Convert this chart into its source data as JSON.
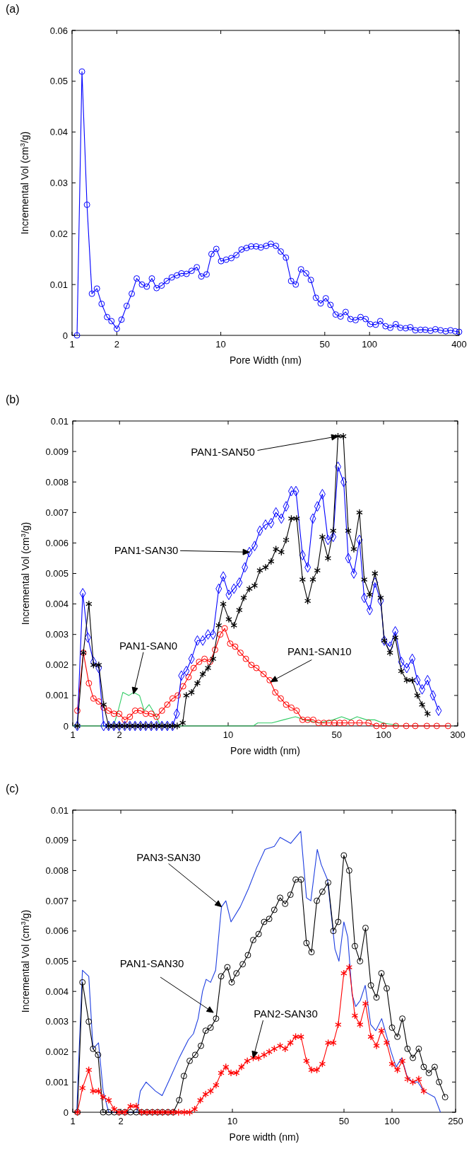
{
  "chart_data": [
    {
      "type": "line",
      "title": "(a)",
      "xlabel": "Pore Width (nm)",
      "ylabel": "Incremental Vol  (cm$^{3}$/g)",
      "log": "x",
      "xlim": [
        1,
        400
      ],
      "xticks": [
        1,
        2,
        10,
        50,
        100,
        400
      ],
      "ylim": [
        0,
        0.06
      ],
      "yticks": [
        0,
        0.01,
        0.02,
        0.03,
        0.04,
        0.05,
        0.06
      ],
      "marker": "circle",
      "series": [
        {
          "color": "#0000ff",
          "x": [
            1.08,
            1.166,
            1.26,
            1.36,
            1.47,
            1.58,
            1.72,
            1.84,
            2.0,
            2.15,
            2.33,
            2.52,
            2.72,
            2.95,
            3.18,
            3.44,
            3.7,
            4.0,
            4.33,
            4.68,
            5.07,
            5.44,
            5.89,
            6.37,
            6.9,
            7.4,
            8.03,
            8.66,
            9.33,
            10.04,
            10.87,
            11.77,
            12.73,
            13.78,
            14.9,
            16.0,
            17.3,
            18.6,
            20.2,
            21.7,
            23.5,
            25.3,
            27.4,
            29.7,
            31.9,
            34.6,
            37.5,
            40.3,
            43.6,
            46.9,
            50.8,
            54.6,
            59.2,
            63.9,
            69.1,
            74.4,
            80.6,
            87.0,
            94.2,
            101,
            110,
            118,
            128,
            138,
            150,
            161,
            175,
            188,
            203,
            220,
            237,
            257,
            277,
            300,
            325,
            350,
            377,
            400
          ],
          "values": [
            0,
            0.0519,
            0.0257,
            0.0082,
            0.0092,
            0.0062,
            0.0036,
            0.0028,
            0.0013,
            0.0031,
            0.0058,
            0.0082,
            0.0112,
            0.01,
            0.0096,
            0.0112,
            0.0093,
            0.0098,
            0.0107,
            0.0114,
            0.0118,
            0.0122,
            0.0121,
            0.0127,
            0.0134,
            0.0116,
            0.012,
            0.016,
            0.017,
            0.0146,
            0.0149,
            0.0152,
            0.0158,
            0.0169,
            0.0172,
            0.0175,
            0.0175,
            0.0173,
            0.0176,
            0.018,
            0.0176,
            0.0165,
            0.0153,
            0.0107,
            0.01,
            0.013,
            0.0122,
            0.0109,
            0.0074,
            0.0063,
            0.0073,
            0.006,
            0.0041,
            0.0037,
            0.0046,
            0.0032,
            0.003,
            0.0036,
            0.0032,
            0.0022,
            0.0021,
            0.0028,
            0.0018,
            0.0015,
            0.0022,
            0.0015,
            0.0014,
            0.0016,
            0.001,
            0.0011,
            0.0011,
            0.0009,
            0.0012,
            0.001,
            0.0008,
            0.001,
            0.0008,
            0.0007
          ]
        }
      ]
    },
    {
      "type": "line",
      "title": "(b)",
      "xlabel": "Pore width (nm)",
      "ylabel": "Incremental Vol  (cm$^{3}$/g)",
      "log": "x",
      "xlim": [
        1,
        300
      ],
      "xticks": [
        1,
        2,
        10,
        50,
        100,
        300
      ],
      "ylim": [
        0,
        0.01
      ],
      "yticks": [
        0,
        0.001,
        0.002,
        0.003,
        0.004,
        0.005,
        0.006,
        0.007,
        0.008,
        0.009,
        0.01
      ],
      "annotations": [
        {
          "text": "PAN1-SAN50",
          "x": 50.9,
          "y": 0.0095
        },
        {
          "text": "PAN1-SAN30",
          "x": 13.7,
          "y": 0.0057
        },
        {
          "text": "PAN1-SAN0",
          "x": 2.46,
          "y": 0.00105
        },
        {
          "text": "PAN1-SAN10",
          "x": 18.8,
          "y": 0.00145
        }
      ],
      "series": [
        {
          "color": "#33cc66",
          "marker": "none",
          "x": [
            1,
            1.83,
            1.96,
            2.1,
            2.3,
            2.46,
            2.69,
            2.88,
            3.1,
            3.37,
            3.68,
            14.5,
            15.5,
            19.1,
            22.7,
            27.1,
            31.1,
            38.5,
            47.4,
            53.7,
            60.9,
            67.6,
            77.9,
            87.7,
            99,
            130
          ],
          "values": [
            0,
            0,
            0.0005,
            0.0011,
            0.001,
            0.0011,
            0.001,
            0.0005,
            0.0007,
            0.0004,
            0,
            0,
            0.0001,
            0.0001,
            0.0002,
            0.0003,
            0.0002,
            0.0001,
            0.0002,
            0.0003,
            0.0002,
            0.0003,
            0.0002,
            0.0002,
            0.0001,
            0
          ]
        },
        {
          "color": "#ff0000",
          "marker": "circle",
          "x": [
            1.07,
            1.17,
            1.27,
            1.36,
            1.47,
            1.58,
            1.7,
            1.84,
            1.99,
            2.16,
            2.33,
            2.52,
            2.73,
            2.95,
            3.2,
            3.46,
            3.75,
            4.06,
            4.39,
            4.74,
            5.13,
            5.56,
            6.0,
            6.5,
            7.05,
            7.63,
            8.24,
            8.9,
            9.5,
            10.3,
            11.1,
            12.0,
            13.0,
            14.1,
            15.2,
            16.9,
            18.5,
            20.1,
            21.8,
            23.6,
            25.5,
            27.6,
            30.1,
            32.5,
            35.3,
            38.1,
            41.3,
            44.5,
            48.3,
            52.3,
            56,
            62,
            70,
            80,
            90,
            100,
            120,
            140,
            160,
            190,
            220,
            260
          ],
          "values": [
            0.0005,
            0.0024,
            0.0014,
            0.0009,
            0.0008,
            0.0006,
            0.0005,
            0.0004,
            0.0004,
            0.0002,
            0.0003,
            0.0005,
            0.0005,
            0.0004,
            0.0004,
            0.0003,
            0.0005,
            0.0007,
            0.0009,
            0.001,
            0.0013,
            0.0016,
            0.0019,
            0.0021,
            0.0022,
            0.0021,
            0.0025,
            0.003,
            0.0032,
            0.0027,
            0.0026,
            0.0024,
            0.0022,
            0.002,
            0.0019,
            0.0017,
            0.0015,
            0.0011,
            0.0009,
            0.0007,
            0.0006,
            0.0005,
            0.0002,
            0.0002,
            0.0002,
            0.0001,
            0.0001,
            0.0001,
            0.0001,
            0.0001,
            0.0001,
            0.0001,
            0.0001,
            0.0001,
            0,
            0,
            0,
            0,
            0,
            0,
            0,
            0
          ]
        },
        {
          "color": "#0000ff",
          "marker": "diamond",
          "x": [
            1.07,
            1.16,
            1.25,
            1.36,
            1.47,
            1.58,
            1.7,
            1.84,
            1.99,
            2.16,
            2.33,
            2.52,
            2.73,
            2.95,
            3.2,
            3.46,
            3.75,
            4.06,
            4.39,
            4.67,
            5.0,
            5.38,
            5.81,
            6.34,
            6.87,
            7.42,
            8.0,
            8.7,
            9.3,
            10.1,
            10.9,
            11.8,
            12.8,
            13.7,
            14.8,
            16.0,
            17.4,
            18.9,
            20.3,
            22.0,
            23.6,
            25.5,
            27.3,
            30.1,
            32.5,
            35.1,
            37.5,
            40.4,
            43.9,
            47.4,
            50.9,
            55.4,
            59.3,
            64.4,
            70.0,
            75.1,
            81.5,
            88.0,
            95.8,
            101,
            110,
            119,
            130,
            141,
            153,
            165,
            177,
            192,
            208,
            226
          ],
          "values": [
            0,
            0.00435,
            0.0029,
            0.0021,
            0.0019,
            0,
            0,
            0,
            0,
            0,
            0,
            0,
            0,
            0,
            0,
            0,
            0,
            0,
            0,
            0.0004,
            0.00165,
            0.0018,
            0.0022,
            0.0028,
            0.0028,
            0.003,
            0.003,
            0.0045,
            0.0049,
            0.0043,
            0.0045,
            0.0047,
            0.0052,
            0.0057,
            0.0059,
            0.0064,
            0.0066,
            0.00665,
            0.007,
            0.0068,
            0.0072,
            0.0077,
            0.0077,
            0.0056,
            0.0052,
            0.0068,
            0.0072,
            0.0076,
            0.0061,
            0.0062,
            0.0085,
            0.008,
            0.0055,
            0.005,
            0.0061,
            0.0042,
            0.0038,
            0.0047,
            0.0041,
            0.0028,
            0.0026,
            0.0031,
            0.0021,
            0.0019,
            0.0022,
            0.0015,
            0.0012,
            0.0015,
            0.001,
            0.0005
          ]
        },
        {
          "color": "#000000",
          "marker": "cross",
          "x": [
            1.07,
            1.17,
            1.27,
            1.36,
            1.47,
            1.58,
            1.7,
            1.84,
            1.99,
            2.16,
            2.33,
            2.52,
            2.73,
            2.95,
            3.2,
            3.46,
            3.75,
            4.06,
            4.39,
            4.7,
            5.1,
            5.38,
            5.81,
            6.34,
            6.87,
            7.42,
            8.0,
            8.7,
            9.3,
            10.1,
            10.9,
            11.8,
            12.6,
            13.7,
            14.8,
            16.0,
            17.4,
            18.9,
            20.3,
            22.0,
            23.6,
            25.5,
            27.6,
            30.1,
            32.5,
            35.1,
            37.5,
            40.4,
            43.9,
            47.4,
            50.9,
            55.1,
            59.3,
            64.4,
            70.0,
            75.1,
            81.5,
            88.0,
            95.8,
            101,
            110,
            119,
            130,
            141,
            153,
            165,
            177,
            192
          ],
          "values": [
            0,
            0.0024,
            0.004,
            0.002,
            0.002,
            0.0007,
            0,
            0,
            0,
            0,
            0,
            0,
            0,
            0,
            0,
            0,
            0,
            0,
            0,
            0,
            0.0001,
            0.001,
            0.0011,
            0.0014,
            0.0017,
            0.0019,
            0.0022,
            0.0033,
            0.004,
            0.0035,
            0.0033,
            0.0038,
            0.0042,
            0.0045,
            0.0046,
            0.0051,
            0.0052,
            0.0054,
            0.0058,
            0.0057,
            0.0061,
            0.0068,
            0.0068,
            0.0048,
            0.0041,
            0.0048,
            0.0051,
            0.0062,
            0.0055,
            0.0064,
            0.0095,
            0.0095,
            0.0064,
            0.0058,
            0.007,
            0.0048,
            0.0043,
            0.005,
            0.0042,
            0.0028,
            0.0024,
            0.0029,
            0.0018,
            0.0015,
            0.0015,
            0.001,
            0.0007,
            0.0004
          ]
        }
      ]
    },
    {
      "type": "line",
      "title": "(c)",
      "xlabel": "Pore width (nm)",
      "ylabel": "Incremental Vol  (cm$^{3}$/g)",
      "log": "x",
      "xlim": [
        1,
        250
      ],
      "xticks": [
        1,
        2,
        10,
        50,
        100,
        250
      ],
      "ylim": [
        0,
        0.01
      ],
      "yticks": [
        0,
        0.001,
        0.002,
        0.003,
        0.004,
        0.005,
        0.006,
        0.007,
        0.008,
        0.009,
        0.01
      ],
      "annotations": [
        {
          "text": "PAN3-SAN30",
          "x": 8.55,
          "y": 0.0068
        },
        {
          "text": "PAN1-SAN30",
          "x": 7.6,
          "y": 0.0033
        },
        {
          "text": "PAN2-SAN30",
          "x": 13.5,
          "y": 0.0018
        }
      ],
      "series": [
        {
          "color": "#1f3fe0",
          "marker": "none",
          "x": [
            1.06,
            1.08,
            1.15,
            1.26,
            1.34,
            1.45,
            1.55,
            1.68,
            2.52,
            2.65,
            2.88,
            3.3,
            3.63,
            4.05,
            4.64,
            5.3,
            5.7,
            6.1,
            6.5,
            6.85,
            7.3,
            7.85,
            8.4,
            8.55,
            9.1,
            9.8,
            11.2,
            12.6,
            14.2,
            16.0,
            18.3,
            19.9,
            23.2,
            26.8,
            29.1,
            31.0,
            34.0,
            36.0,
            39.4,
            42.1,
            43.9,
            46.5,
            49.9,
            52.8,
            56.2,
            59.2,
            63.2,
            67.9,
            73.5,
            79.1,
            86.1,
            98.7,
            106,
            115,
            124,
            134,
            145,
            158,
            185,
            201
          ],
          "values": [
            0,
            0.0012,
            0.0047,
            0.0045,
            0.0021,
            0.0023,
            0.0007,
            0,
            0,
            0.0007,
            0.001,
            0.0007,
            0.00055,
            0.0011,
            0.0018,
            0.0024,
            0.0026,
            0.0031,
            0.004,
            0.0044,
            0.0043,
            0.0047,
            0.0064,
            0.0068,
            0.007,
            0.0063,
            0.0068,
            0.0074,
            0.0081,
            0.0087,
            0.0088,
            0.0091,
            0.0089,
            0.0093,
            0.0071,
            0.007,
            0.0087,
            0.0082,
            0.0077,
            0.0063,
            0.0054,
            0.005,
            0.0063,
            0.0058,
            0.0039,
            0.0035,
            0.0037,
            0.0042,
            0.0029,
            0.0027,
            0.0031,
            0.002,
            0.0015,
            0.0018,
            0.0012,
            0.001,
            0.001,
            0.0007,
            0.0005,
            0
          ]
        },
        {
          "color": "#000000",
          "marker": "circle",
          "x": [
            1.07,
            1.15,
            1.26,
            1.34,
            1.44,
            1.55,
            1.68,
            1.82,
            1.95,
            2.12,
            2.3,
            2.5,
            2.7,
            2.92,
            3.15,
            3.4,
            3.65,
            3.95,
            4.26,
            4.64,
            4.97,
            5.4,
            5.85,
            6.35,
            6.8,
            7.3,
            7.9,
            8.5,
            9.3,
            9.9,
            10.6,
            11.6,
            12.5,
            13.5,
            14.6,
            15.8,
            17.0,
            18.3,
            19.9,
            21.4,
            23.1,
            24.9,
            26.9,
            29.1,
            31.3,
            33.8,
            36.6,
            39.8,
            42.9,
            46.0,
            49.9,
            53.9,
            58.5,
            63.0,
            68.2,
            73.7,
            79.9,
            85.8,
            92.6,
            100,
            108,
            116,
            125,
            135,
            147,
            158,
            170,
            185,
            197,
            215
          ],
          "values": [
            0,
            0.0043,
            0.003,
            0.0021,
            0.0019,
            0,
            0,
            0,
            0,
            0,
            0,
            0,
            0,
            0,
            0,
            0,
            0,
            0,
            0,
            0.0004,
            0.0012,
            0.0017,
            0.0019,
            0.0022,
            0.0027,
            0.0028,
            0.0031,
            0.0045,
            0.0048,
            0.0043,
            0.0046,
            0.0049,
            0.0052,
            0.0057,
            0.0059,
            0.0063,
            0.0064,
            0.0067,
            0.0071,
            0.0069,
            0.0072,
            0.0077,
            0.0077,
            0.0056,
            0.0053,
            0.007,
            0.0073,
            0.0076,
            0.006,
            0.0063,
            0.0085,
            0.008,
            0.0055,
            0.005,
            0.0061,
            0.0042,
            0.0038,
            0.0046,
            0.0041,
            0.0028,
            0.0025,
            0.0031,
            0.0021,
            0.0018,
            0.0021,
            0.0015,
            0.0013,
            0.0015,
            0.001,
            0.0005
          ]
        },
        {
          "color": "#ff0000",
          "marker": "cross",
          "x": [
            1.07,
            1.15,
            1.26,
            1.34,
            1.45,
            1.55,
            1.68,
            1.82,
            1.95,
            2.12,
            2.3,
            2.5,
            2.7,
            2.92,
            3.15,
            3.4,
            3.65,
            3.95,
            4.26,
            4.6,
            5.0,
            5.4,
            5.8,
            6.3,
            6.8,
            7.3,
            7.9,
            8.5,
            9.1,
            9.8,
            10.6,
            11.4,
            12.4,
            13.5,
            14.6,
            15.8,
            17.0,
            18.3,
            19.9,
            21.4,
            23.1,
            24.9,
            26.9,
            29.1,
            31.3,
            33.8,
            36.6,
            39.8,
            42.9,
            46.0,
            49.9,
            53.9,
            58.5,
            63.0,
            68.2,
            73.7,
            79.9,
            85.8,
            92.6,
            100,
            108,
            116,
            125,
            135,
            147,
            158
          ],
          "values": [
            0,
            0.0008,
            0.0014,
            0.0007,
            0.0007,
            0.0005,
            0.0004,
            0.0001,
            0,
            0,
            0.0002,
            0.0002,
            0,
            0,
            0,
            0,
            0,
            0,
            0,
            0,
            0,
            0,
            0.0001,
            0.0004,
            0.0006,
            0.0007,
            0.0009,
            0.0013,
            0.0015,
            0.0013,
            0.0013,
            0.0015,
            0.0017,
            0.0018,
            0.0018,
            0.0019,
            0.002,
            0.0021,
            0.0022,
            0.0021,
            0.0023,
            0.0025,
            0.0025,
            0.0017,
            0.0014,
            0.0014,
            0.0016,
            0.0023,
            0.0023,
            0.0029,
            0.0046,
            0.0048,
            0.0032,
            0.0029,
            0.0036,
            0.0025,
            0.0022,
            0.0027,
            0.0023,
            0.0016,
            0.0014,
            0.0017,
            0.0011,
            0.001,
            0.0011,
            0.0007
          ]
        }
      ]
    }
  ]
}
